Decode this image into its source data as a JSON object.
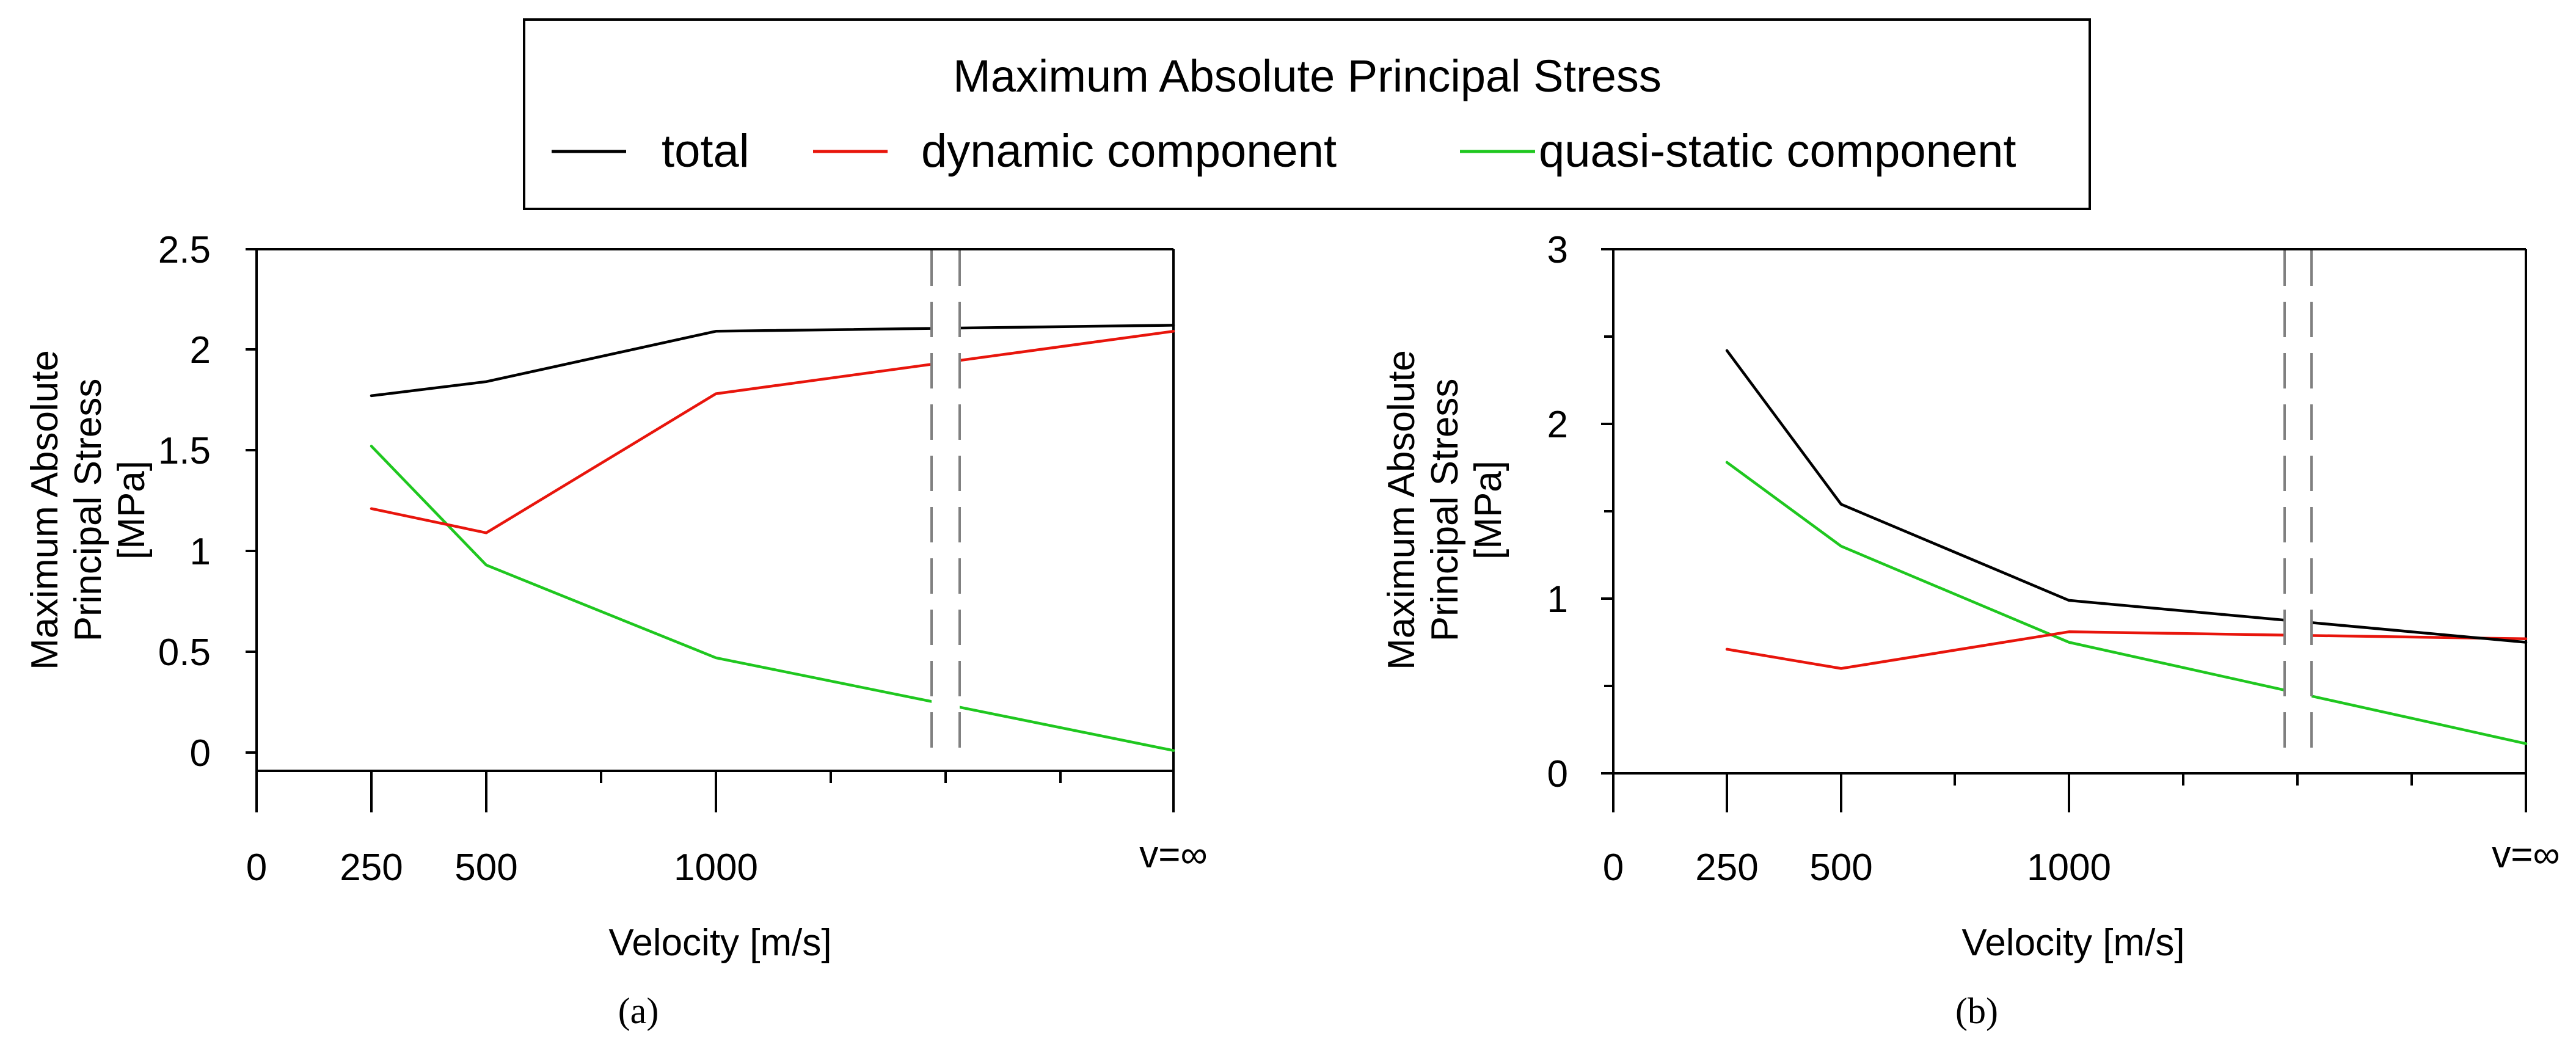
{
  "legend": {
    "title": "Maximum Absolute Principal Stress",
    "items": [
      {
        "label": "total",
        "color": "#000000"
      },
      {
        "label": "dynamic component",
        "color": "#e8150c"
      },
      {
        "label": "quasi-static component",
        "color": "#1fc71f"
      }
    ]
  },
  "colors": {
    "total": "#000000",
    "dynamic": "#e8150c",
    "quasi_static": "#1fc71f",
    "axis_break": "#808080"
  },
  "chart_data": [
    {
      "type": "line",
      "panel_label": "(a)",
      "title": "",
      "xlabel": "Velocity [m/s]",
      "ylabel_lines": [
        "Maximum Absolute",
        "Principal Stress",
        "[MPa]"
      ],
      "x_tick_labels": [
        "0",
        "250",
        "500",
        "1000",
        "v=∞"
      ],
      "y_tick_labels": [
        "0",
        "0.5",
        "1",
        "1.5",
        "2",
        "2.5"
      ],
      "ylim": [
        -0.1,
        2.5
      ],
      "x_axis_break": "between 1000 and v=∞",
      "categories": [
        "250",
        "500",
        "1000",
        "v=∞"
      ],
      "series": [
        {
          "name": "total",
          "values": [
            1.77,
            1.84,
            2.09,
            2.12
          ]
        },
        {
          "name": "dynamic component",
          "values": [
            1.21,
            1.09,
            1.78,
            2.09
          ]
        },
        {
          "name": "quasi-static component",
          "values": [
            1.52,
            0.93,
            0.47,
            0.01
          ]
        }
      ]
    },
    {
      "type": "line",
      "panel_label": "(b)",
      "title": "",
      "xlabel": "Velocity [m/s]",
      "ylabel_lines": [
        "Maximum Absolute",
        "Principal Stress",
        "[MPa]"
      ],
      "x_tick_labels": [
        "0",
        "250",
        "500",
        "1000",
        "v=∞"
      ],
      "y_tick_labels": [
        "0",
        "1",
        "2",
        "3"
      ],
      "ylim": [
        0,
        3
      ],
      "x_axis_break": "between 1000 and v=∞",
      "categories": [
        "250",
        "500",
        "1000",
        "v=∞"
      ],
      "series": [
        {
          "name": "total",
          "values": [
            2.42,
            1.54,
            0.99,
            0.75
          ]
        },
        {
          "name": "dynamic component",
          "values": [
            0.71,
            0.6,
            0.81,
            0.77
          ]
        },
        {
          "name": "quasi-static component",
          "values": [
            1.78,
            1.3,
            0.75,
            0.17
          ]
        }
      ]
    }
  ]
}
